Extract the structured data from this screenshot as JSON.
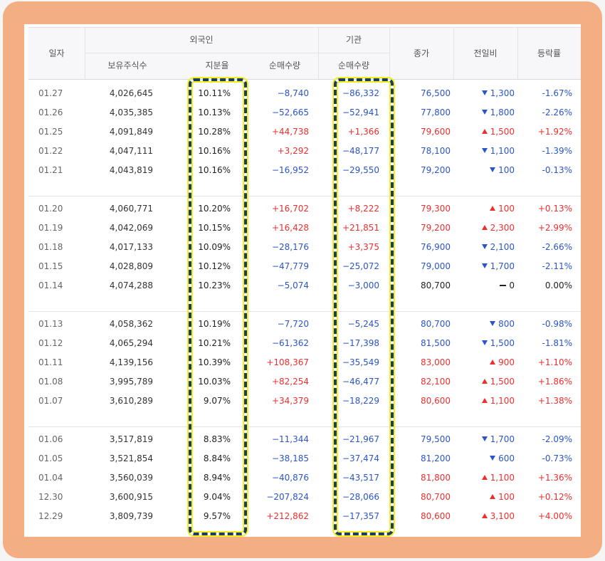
{
  "header": {
    "date": "일자",
    "foreign": "외국인",
    "institution": "기관",
    "holdings": "보유주식수",
    "ratio": "지분율",
    "foreign_net": "순매수량",
    "inst_net": "순매수량",
    "close": "종가",
    "change": "전일비",
    "rate": "등락률"
  },
  "colors": {
    "up": "#ef2e2e",
    "down": "#2b55c8",
    "highlight_border": "#1e3d5c",
    "highlight_glow": "#f0f01e",
    "frame": "#f4ae84"
  },
  "rows": [
    {
      "date": "01.27",
      "holdings": "4,026,645",
      "ratio": "10.11%",
      "fnet": "−8,740",
      "fdir": "down",
      "inet": "−86,332",
      "idir": "down",
      "close": "76,500",
      "cdir": "down",
      "chg": "1,300",
      "rate": "-1.67%"
    },
    {
      "date": "01.26",
      "holdings": "4,035,385",
      "ratio": "10.13%",
      "fnet": "−52,665",
      "fdir": "down",
      "inet": "−52,941",
      "idir": "down",
      "close": "77,800",
      "cdir": "down",
      "chg": "1,800",
      "rate": "-2.26%"
    },
    {
      "date": "01.25",
      "holdings": "4,091,849",
      "ratio": "10.28%",
      "fnet": "+44,738",
      "fdir": "up",
      "inet": "+1,366",
      "idir": "up",
      "close": "79,600",
      "cdir": "up",
      "chg": "1,500",
      "rate": "+1.92%"
    },
    {
      "date": "01.22",
      "holdings": "4,047,111",
      "ratio": "10.16%",
      "fnet": "+3,292",
      "fdir": "up",
      "inet": "−48,177",
      "idir": "down",
      "close": "78,100",
      "cdir": "down",
      "chg": "1,100",
      "rate": "-1.39%"
    },
    {
      "date": "01.21",
      "holdings": "4,043,819",
      "ratio": "10.16%",
      "fnet": "−16,952",
      "fdir": "down",
      "inet": "−29,550",
      "idir": "down",
      "close": "79,200",
      "cdir": "down",
      "chg": "100",
      "rate": "-0.13%"
    },
    {
      "date": "01.20",
      "holdings": "4,060,771",
      "ratio": "10.20%",
      "fnet": "+16,702",
      "fdir": "up",
      "inet": "+8,222",
      "idir": "up",
      "close": "79,300",
      "cdir": "up",
      "chg": "100",
      "rate": "+0.13%"
    },
    {
      "date": "01.19",
      "holdings": "4,042,069",
      "ratio": "10.15%",
      "fnet": "+16,428",
      "fdir": "up",
      "inet": "+21,851",
      "idir": "up",
      "close": "79,200",
      "cdir": "up",
      "chg": "2,300",
      "rate": "+2.99%"
    },
    {
      "date": "01.18",
      "holdings": "4,017,133",
      "ratio": "10.09%",
      "fnet": "−28,176",
      "fdir": "down",
      "inet": "+3,375",
      "idir": "up",
      "close": "76,900",
      "cdir": "down",
      "chg": "2,100",
      "rate": "-2.66%"
    },
    {
      "date": "01.15",
      "holdings": "4,028,809",
      "ratio": "10.12%",
      "fnet": "−47,779",
      "fdir": "down",
      "inet": "−25,072",
      "idir": "down",
      "close": "79,000",
      "cdir": "down",
      "chg": "1,700",
      "rate": "-2.11%"
    },
    {
      "date": "01.14",
      "holdings": "4,074,288",
      "ratio": "10.23%",
      "fnet": "−5,074",
      "fdir": "down",
      "inet": "−3,000",
      "idir": "down",
      "close": "80,700",
      "cdir": "flat",
      "chg": "0",
      "rate": "0.00%"
    },
    {
      "date": "01.13",
      "holdings": "4,058,362",
      "ratio": "10.19%",
      "fnet": "−7,720",
      "fdir": "down",
      "inet": "−5,245",
      "idir": "down",
      "close": "80,700",
      "cdir": "down",
      "chg": "800",
      "rate": "-0.98%"
    },
    {
      "date": "01.12",
      "holdings": "4,065,294",
      "ratio": "10.21%",
      "fnet": "−61,362",
      "fdir": "down",
      "inet": "−17,398",
      "idir": "down",
      "close": "81,500",
      "cdir": "down",
      "chg": "1,500",
      "rate": "-1.81%"
    },
    {
      "date": "01.11",
      "holdings": "4,139,156",
      "ratio": "10.39%",
      "fnet": "+108,367",
      "fdir": "up",
      "inet": "−35,549",
      "idir": "down",
      "close": "83,000",
      "cdir": "up",
      "chg": "900",
      "rate": "+1.10%"
    },
    {
      "date": "01.08",
      "holdings": "3,995,789",
      "ratio": "10.03%",
      "fnet": "+82,254",
      "fdir": "up",
      "inet": "−46,477",
      "idir": "down",
      "close": "82,100",
      "cdir": "up",
      "chg": "1,500",
      "rate": "+1.86%"
    },
    {
      "date": "01.07",
      "holdings": "3,610,289",
      "ratio": "9.07%",
      "fnet": "+34,379",
      "fdir": "up",
      "inet": "−18,229",
      "idir": "down",
      "close": "80,600",
      "cdir": "up",
      "chg": "1,100",
      "rate": "+1.38%"
    },
    {
      "date": "01.06",
      "holdings": "3,517,819",
      "ratio": "8.83%",
      "fnet": "−11,344",
      "fdir": "down",
      "inet": "−21,967",
      "idir": "down",
      "close": "79,500",
      "cdir": "down",
      "chg": "1,700",
      "rate": "-2.09%"
    },
    {
      "date": "01.05",
      "holdings": "3,521,854",
      "ratio": "8.84%",
      "fnet": "−38,185",
      "fdir": "down",
      "inet": "−37,474",
      "idir": "down",
      "close": "81,200",
      "cdir": "down",
      "chg": "600",
      "rate": "-0.73%"
    },
    {
      "date": "01.04",
      "holdings": "3,560,039",
      "ratio": "8.94%",
      "fnet": "−40,876",
      "fdir": "down",
      "inet": "−43,517",
      "idir": "down",
      "close": "81,800",
      "cdir": "up",
      "chg": "1,100",
      "rate": "+1.36%"
    },
    {
      "date": "12.30",
      "holdings": "3,600,915",
      "ratio": "9.04%",
      "fnet": "−207,824",
      "fdir": "down",
      "inet": "−28,066",
      "idir": "down",
      "close": "80,700",
      "cdir": "up",
      "chg": "100",
      "rate": "+0.12%"
    },
    {
      "date": "12.29",
      "holdings": "3,809,739",
      "ratio": "9.57%",
      "fnet": "+212,862",
      "fdir": "up",
      "inet": "−17,357",
      "idir": "down",
      "close": "80,600",
      "cdir": "up",
      "chg": "3,100",
      "rate": "+4.00%"
    }
  ]
}
